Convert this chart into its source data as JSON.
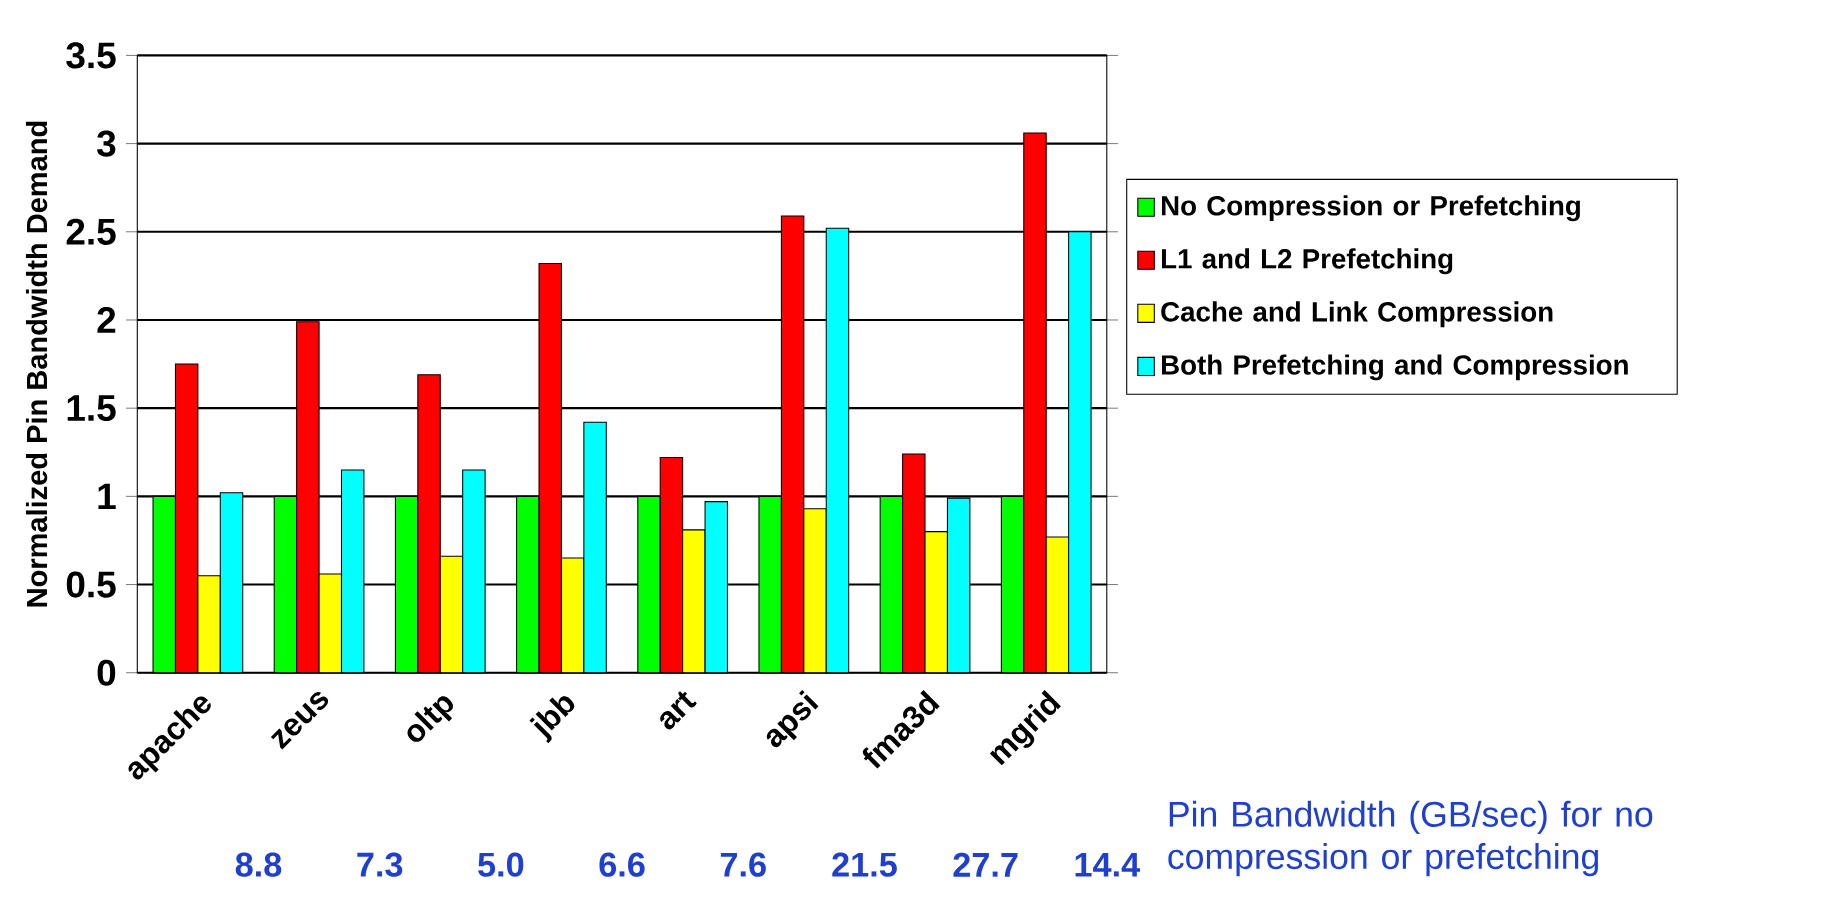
{
  "chart_data": {
    "type": "bar",
    "ylabel": "Normalized Pin Bandwidth Demand",
    "categories": [
      "apache",
      "zeus",
      "oltp",
      "jbb",
      "art",
      "apsi",
      "fma3d",
      "mgrid"
    ],
    "series": [
      {
        "name": "No Compression or Prefetching",
        "color": "#00ff00",
        "values": [
          1,
          1,
          1,
          1,
          1,
          1,
          1,
          1
        ]
      },
      {
        "name": "L1 and L2 Prefetching",
        "color": "#ff0000",
        "values": [
          1.75,
          1.99,
          1.69,
          2.32,
          1.22,
          2.59,
          1.24,
          3.06
        ]
      },
      {
        "name": "Cache and Link Compression",
        "color": "#ffff00",
        "values": [
          0.55,
          0.56,
          0.66,
          0.65,
          0.81,
          0.93,
          0.8,
          0.77
        ]
      },
      {
        "name": "Both Prefetching and Compression",
        "color": "#00ffff",
        "values": [
          1.02,
          1.15,
          1.15,
          1.42,
          0.97,
          2.52,
          0.99,
          2.5
        ]
      }
    ],
    "ylim": [
      0,
      3.5
    ],
    "yticks": [
      0,
      0.5,
      1,
      1.5,
      2,
      2.5,
      3,
      3.5
    ],
    "grid": "y",
    "legend": "right",
    "annotations": [
      "8.8",
      "7.3",
      "5.0",
      "6.6",
      "7.6",
      "21.5",
      "27.7",
      "14.4",
      "Pin Bandwidth (GB/sec) for no compression or prefetching"
    ]
  }
}
